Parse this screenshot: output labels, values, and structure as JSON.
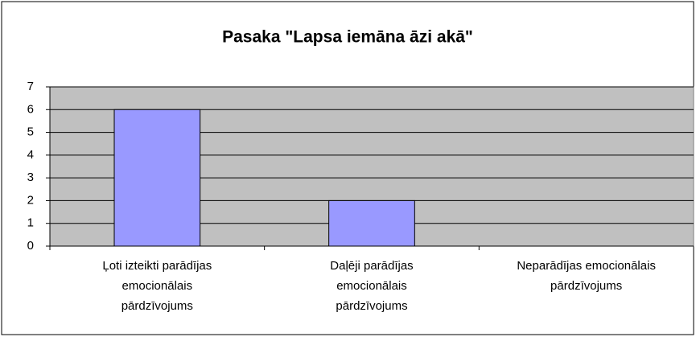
{
  "chart_data": {
    "type": "bar",
    "title": "Pasaka \"Lapsa iemāna āzi akā\"",
    "categories": [
      "Ļoti izteikti parādījas emocionālais pārdzīvojums",
      "Daļēji parādījas emocionālais pārdzīvojums",
      "Neparādījas emocionālais pārdzīvojums"
    ],
    "values": [
      6,
      2,
      0
    ],
    "color": "#9999ff",
    "plot_background": "#c0c0c0",
    "ylim": [
      0,
      7
    ],
    "yticks": [
      0,
      1,
      2,
      3,
      4,
      5,
      6,
      7
    ],
    "grid": true
  }
}
